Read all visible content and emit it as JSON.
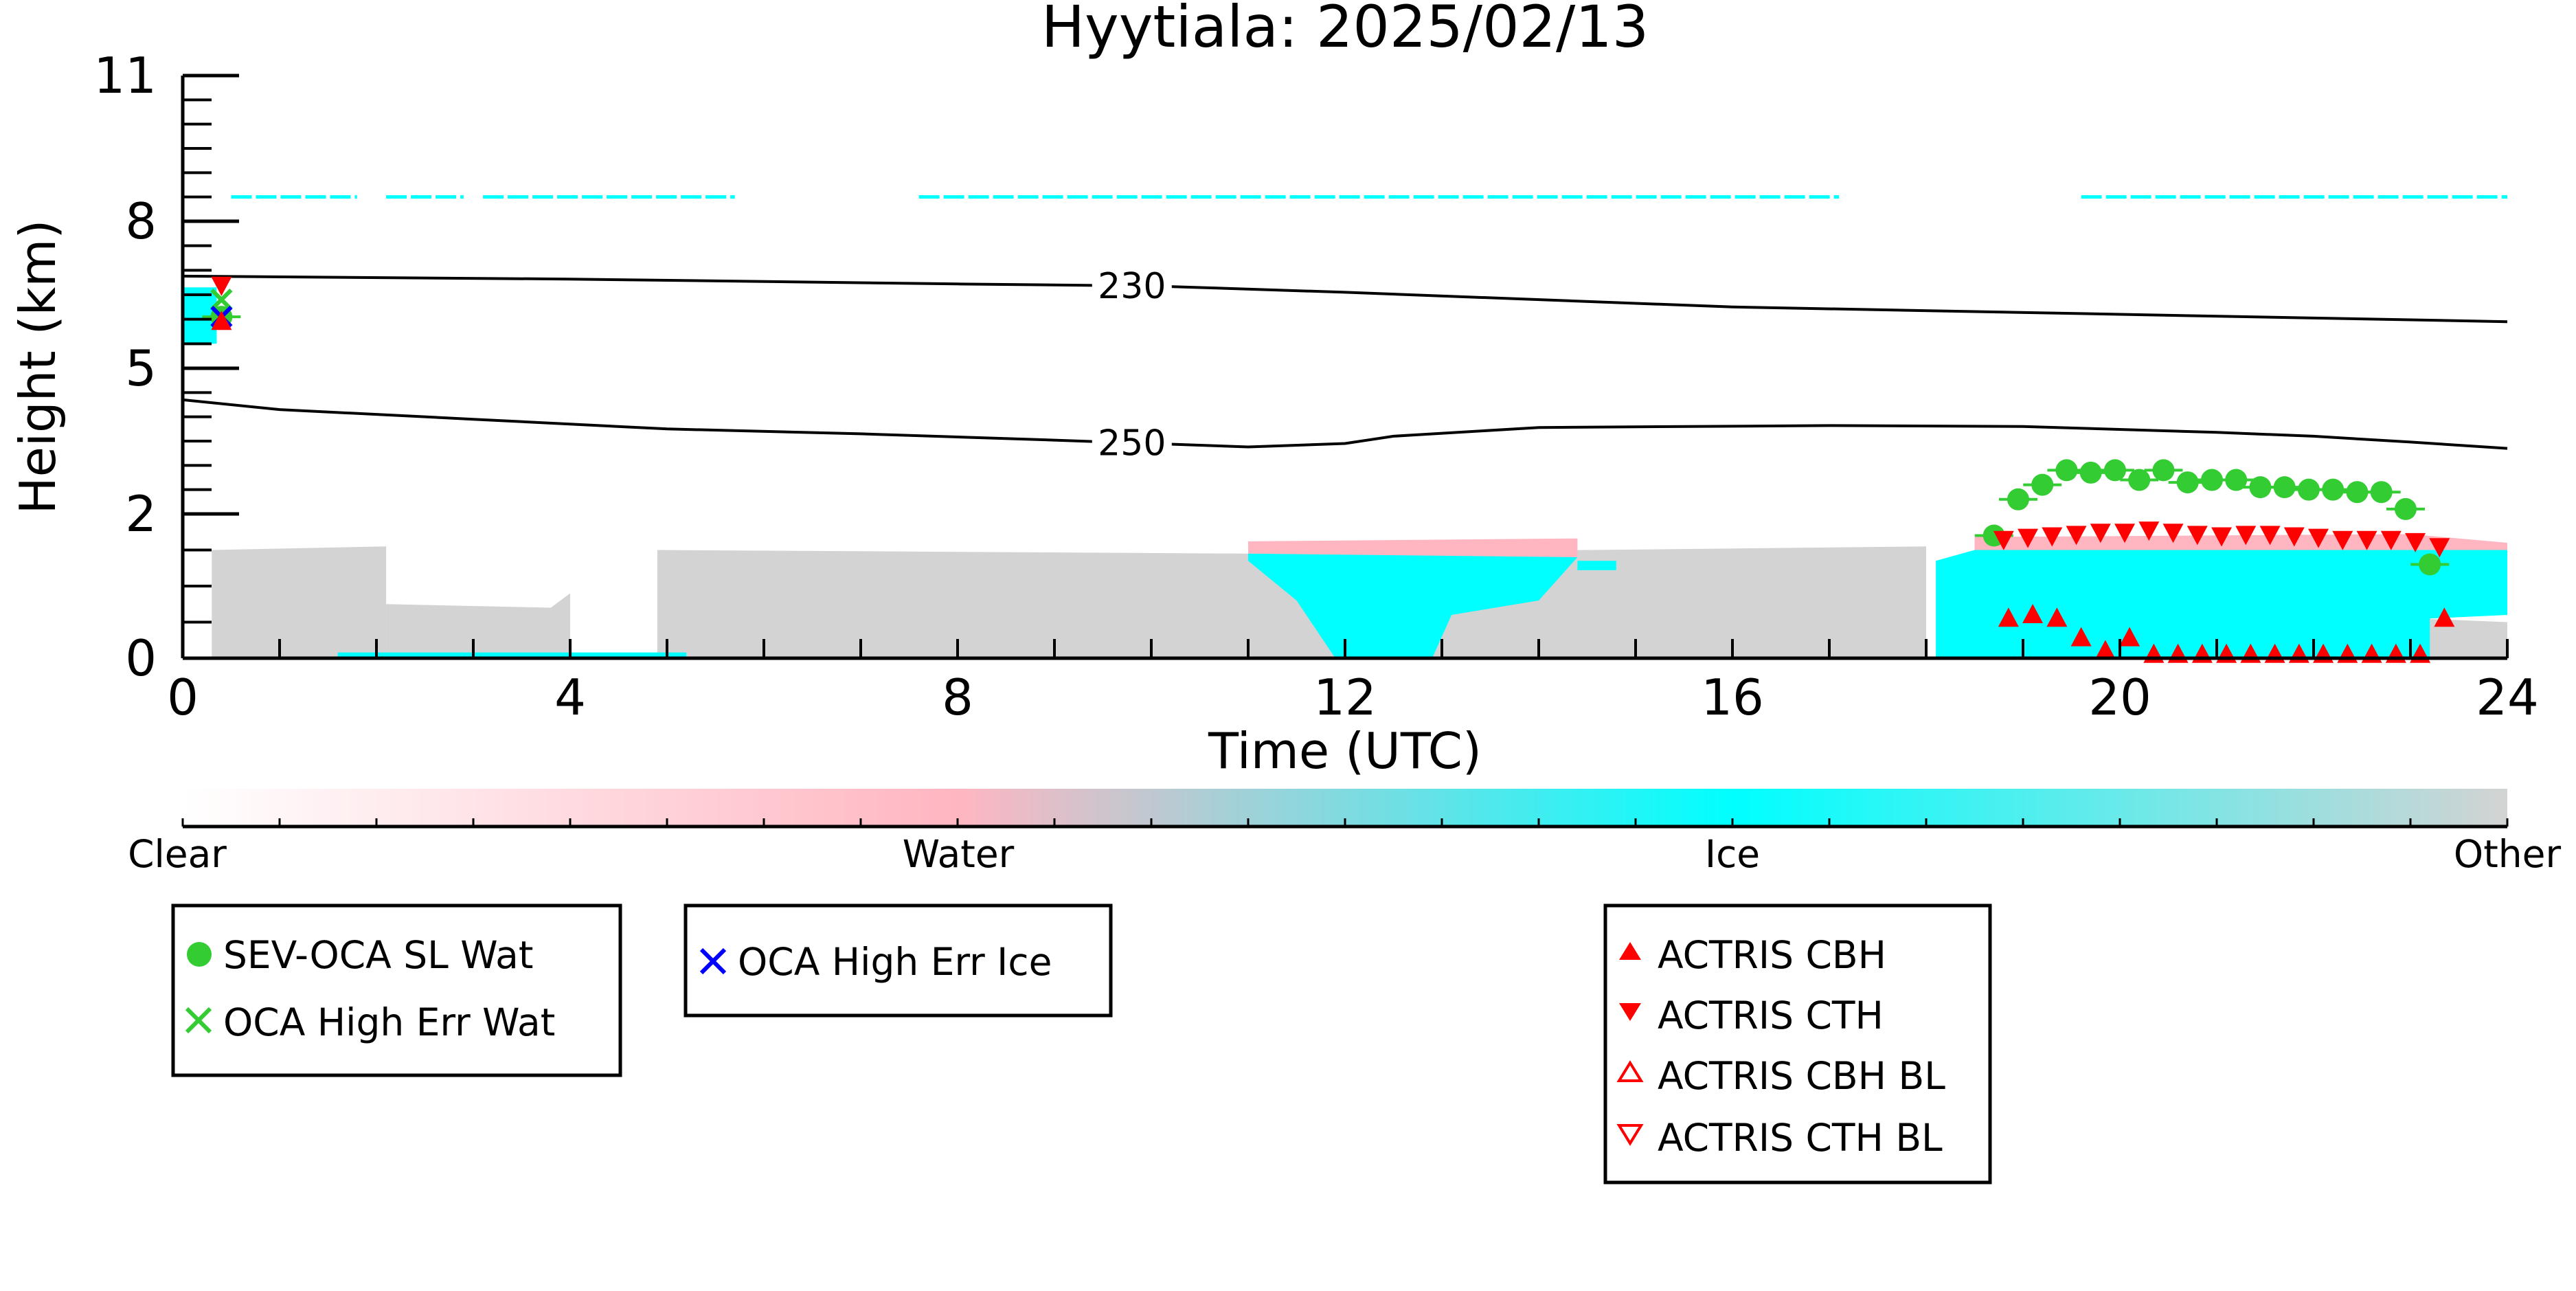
{
  "chart_data": {
    "type": "scatter",
    "title": "Hyytiala: 2025/02/13",
    "xlabel": "Time (UTC)",
    "ylabel": "Height (km)",
    "xlim": [
      0,
      24
    ],
    "ylim": [
      0,
      11
    ],
    "y_scale": "nonlinear (tick labels 0, 2, 5, 8, 11)",
    "xticks": [
      0,
      4,
      8,
      12,
      16,
      20,
      24
    ],
    "yticks": [
      0,
      2,
      5,
      8,
      11
    ],
    "grid": false,
    "colorbar": {
      "labels": [
        "Clear",
        "Water",
        "Ice",
        "Other"
      ],
      "colors": [
        "#ffffff",
        "#ffb6c1",
        "#00ffff",
        "#d3d3d3"
      ]
    },
    "contours": [
      {
        "label": "230",
        "x": [
          0,
          4,
          8,
          10,
          12,
          16,
          20,
          24
        ],
        "y": [
          6.88,
          6.82,
          6.72,
          6.68,
          6.55,
          6.25,
          6.1,
          5.95
        ]
      },
      {
        "label": "250",
        "x": [
          0,
          1,
          3,
          5,
          7,
          9,
          11,
          12,
          12.5,
          14,
          17,
          19,
          21,
          22,
          23,
          24
        ],
        "y": [
          4.35,
          4.15,
          3.95,
          3.75,
          3.65,
          3.52,
          3.38,
          3.45,
          3.6,
          3.78,
          3.82,
          3.8,
          3.68,
          3.6,
          3.48,
          3.35
        ]
      }
    ],
    "cloud_regions": [
      {
        "class": "Other",
        "polygon": [
          [
            0.3,
            0
          ],
          [
            0.3,
            1.5
          ],
          [
            2.1,
            1.55
          ],
          [
            2.1,
            0
          ]
        ]
      },
      {
        "class": "Other",
        "polygon": [
          [
            2.1,
            0
          ],
          [
            2.1,
            0.75
          ],
          [
            3.8,
            0.7
          ],
          [
            4.0,
            0.9
          ],
          [
            4.0,
            0
          ]
        ]
      },
      {
        "class": "Other",
        "polygon": [
          [
            4.9,
            0
          ],
          [
            4.9,
            1.5
          ],
          [
            11.0,
            1.45
          ],
          [
            18.0,
            1.55
          ],
          [
            18.0,
            0
          ]
        ]
      },
      {
        "class": "Water",
        "polygon": [
          [
            11.0,
            1.45
          ],
          [
            11.0,
            1.62
          ],
          [
            14.4,
            1.66
          ],
          [
            14.4,
            1.4
          ]
        ]
      },
      {
        "class": "Ice",
        "polygon": [
          [
            11.0,
            1.35
          ],
          [
            11.5,
            0.8
          ],
          [
            11.9,
            0
          ],
          [
            12.9,
            0
          ],
          [
            13.1,
            0.6
          ],
          [
            14.0,
            0.8
          ],
          [
            14.4,
            1.4
          ],
          [
            11.0,
            1.45
          ]
        ]
      },
      {
        "class": "Ice",
        "polygon": [
          [
            14.4,
            1.35
          ],
          [
            14.4,
            1.22
          ],
          [
            14.8,
            1.22
          ],
          [
            14.8,
            1.35
          ]
        ]
      },
      {
        "class": "Other",
        "polygon": [
          [
            23.1,
            0
          ],
          [
            23.1,
            0.55
          ],
          [
            24,
            0.5
          ],
          [
            24,
            0
          ]
        ]
      },
      {
        "class": "Water",
        "polygon": [
          [
            18.5,
            1.5
          ],
          [
            18.5,
            1.68
          ],
          [
            23.0,
            1.72
          ],
          [
            24,
            1.6
          ],
          [
            24,
            1.45
          ]
        ]
      },
      {
        "class": "Ice",
        "polygon": [
          [
            18.1,
            0
          ],
          [
            18.1,
            1.35
          ],
          [
            18.5,
            1.5
          ],
          [
            24,
            1.5
          ],
          [
            24,
            0.6
          ],
          [
            23.2,
            0.55
          ],
          [
            23.2,
            0
          ]
        ]
      },
      {
        "class": "Ice",
        "polygon": [
          [
            0,
            5.5
          ],
          [
            0,
            6.65
          ],
          [
            0.35,
            6.65
          ],
          [
            0.35,
            5.5
          ]
        ]
      },
      {
        "class": "Ice",
        "polygon": [
          [
            1.6,
            0
          ],
          [
            1.6,
            0.08
          ],
          [
            5.2,
            0.08
          ],
          [
            5.2,
            0
          ]
        ]
      }
    ],
    "cloud_strip": {
      "class": "Ice",
      "height_km": 8.5,
      "segments": [
        [
          0.5,
          1.8
        ],
        [
          2.1,
          2.9
        ],
        [
          3.1,
          5.7
        ],
        [
          7.6,
          17.1
        ],
        [
          19.6,
          24
        ]
      ]
    },
    "series": [
      {
        "name": "SEV-OCA SL Wat",
        "marker": "circle-filled",
        "color": "#33cc33",
        "x": [
          0.4,
          18.7,
          18.95,
          19.2,
          19.45,
          19.7,
          19.95,
          20.2,
          20.45,
          20.7,
          20.95,
          21.2,
          21.45,
          21.7,
          21.95,
          22.2,
          22.45,
          22.7,
          22.95,
          23.2
        ],
        "y": [
          6.05,
          1.7,
          2.3,
          2.6,
          2.9,
          2.85,
          2.9,
          2.7,
          2.9,
          2.65,
          2.7,
          2.7,
          2.55,
          2.55,
          2.5,
          2.5,
          2.45,
          2.45,
          2.1,
          1.3
        ]
      },
      {
        "name": "OCA High Err Wat",
        "marker": "x",
        "color": "#33cc33",
        "x": [
          0.4
        ],
        "y": [
          6.4
        ]
      },
      {
        "name": "OCA High Err Ice",
        "marker": "x",
        "color": "#0000ff",
        "x": [
          0.4
        ],
        "y": [
          6.05
        ]
      },
      {
        "name": "ACTRIS CBH",
        "marker": "triangle-up-filled",
        "color": "#ff0000",
        "x": [
          0.4,
          18.85,
          19.1,
          19.35,
          19.6,
          19.85,
          20.1,
          20.35,
          20.6,
          20.85,
          21.1,
          21.35,
          21.6,
          21.85,
          22.1,
          22.35,
          22.6,
          22.85,
          23.1,
          23.35
        ],
        "y": [
          5.95,
          0.55,
          0.6,
          0.55,
          0.28,
          0.1,
          0.28,
          0.05,
          0.05,
          0.05,
          0.05,
          0.05,
          0.05,
          0.05,
          0.05,
          0.05,
          0.05,
          0.05,
          0.05,
          0.55
        ]
      },
      {
        "name": "ACTRIS CTH",
        "marker": "triangle-down-filled",
        "color": "#ff0000",
        "x": [
          0.4,
          18.8,
          19.05,
          19.3,
          19.55,
          19.8,
          20.05,
          20.3,
          20.55,
          20.8,
          21.05,
          21.3,
          21.55,
          21.8,
          22.05,
          22.3,
          22.55,
          22.8,
          23.05,
          23.3
        ],
        "y": [
          6.7,
          1.65,
          1.68,
          1.7,
          1.72,
          1.75,
          1.75,
          1.78,
          1.75,
          1.72,
          1.7,
          1.72,
          1.72,
          1.7,
          1.68,
          1.65,
          1.65,
          1.65,
          1.62,
          1.55
        ]
      },
      {
        "name": "ACTRIS CBH BL",
        "marker": "triangle-up-open",
        "color": "#ff0000",
        "x": [],
        "y": []
      },
      {
        "name": "ACTRIS CTH BL",
        "marker": "triangle-down-open",
        "color": "#ff0000",
        "x": [],
        "y": []
      }
    ],
    "legend": [
      {
        "placement": "bottom-left",
        "entries": [
          "SEV-OCA SL Wat",
          "OCA High Err Wat"
        ]
      },
      {
        "placement": "bottom-center-left",
        "entries": [
          "OCA High Err Ice"
        ]
      },
      {
        "placement": "bottom-right",
        "entries": [
          "ACTRIS CBH",
          "ACTRIS CTH",
          "ACTRIS CBH BL",
          "ACTRIS CTH BL"
        ]
      }
    ]
  }
}
